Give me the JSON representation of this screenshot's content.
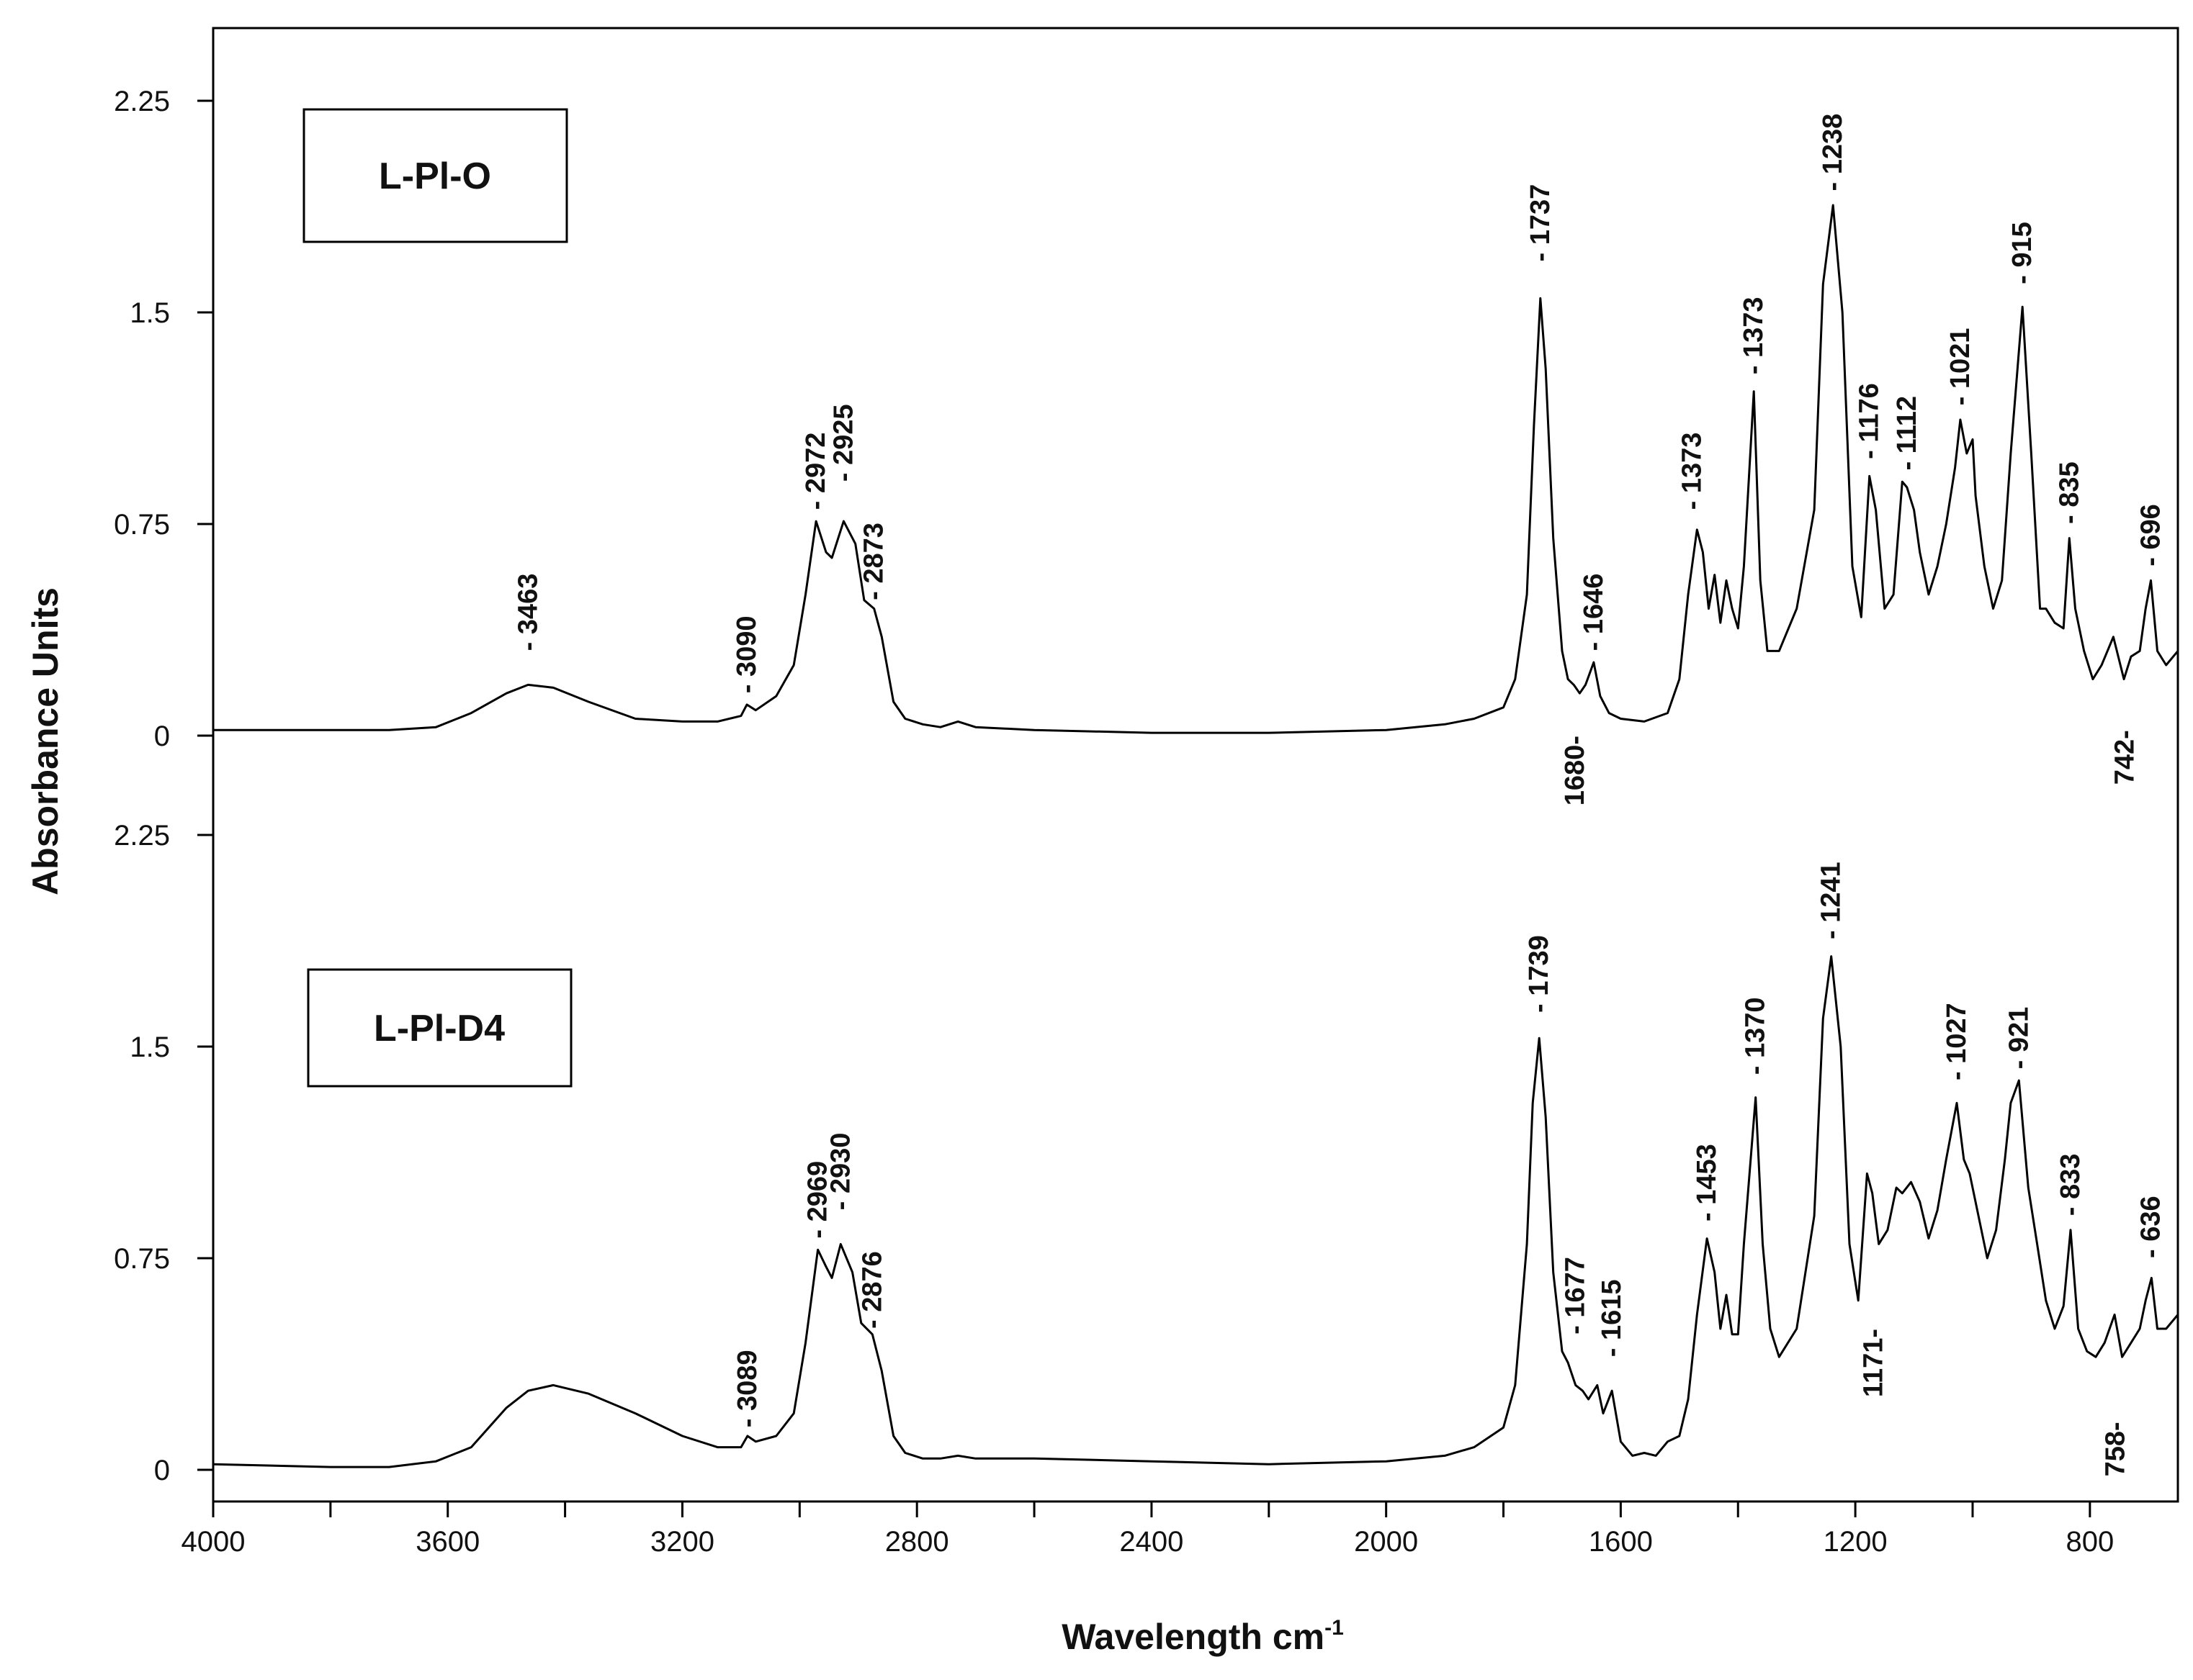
{
  "chart_data": {
    "type": "line",
    "xlabel": "Wavelength cm",
    "xlabel_sup": "-1",
    "ylabel": "Absorbance Units",
    "xlim": [
      4000,
      650
    ],
    "x_ticks": [
      4000,
      3600,
      3200,
      2800,
      2400,
      2000,
      1600,
      1200,
      800
    ],
    "panels": [
      {
        "name": "L-PI-O",
        "label": "L-Pl-O",
        "ylim": [
          -0.1,
          2.4
        ],
        "y_ticks": [
          "0",
          "0.75",
          "1.5",
          "2.25"
        ],
        "y_tick_values": [
          0,
          0.75,
          1.5,
          2.25
        ],
        "x": [
          4000,
          3800,
          3700,
          3620,
          3560,
          3500,
          3463,
          3420,
          3360,
          3280,
          3200,
          3140,
          3100,
          3090,
          3075,
          3040,
          3010,
          2990,
          2972,
          2955,
          2945,
          2925,
          2905,
          2890,
          2873,
          2860,
          2840,
          2820,
          2790,
          2760,
          2730,
          2700,
          2600,
          2400,
          2200,
          2000,
          1900,
          1850,
          1800,
          1780,
          1760,
          1748,
          1737,
          1728,
          1715,
          1700,
          1690,
          1680,
          1670,
          1660,
          1646,
          1635,
          1620,
          1600,
          1560,
          1520,
          1500,
          1485,
          1470,
          1460,
          1450,
          1440,
          1430,
          1420,
          1410,
          1400,
          1390,
          1373,
          1362,
          1350,
          1330,
          1300,
          1270,
          1255,
          1238,
          1222,
          1205,
          1190,
          1176,
          1165,
          1150,
          1135,
          1120,
          1112,
          1100,
          1090,
          1075,
          1060,
          1045,
          1030,
          1021,
          1010,
          1000,
          995,
          980,
          965,
          950,
          935,
          915,
          900,
          885,
          875,
          860,
          845,
          835,
          825,
          810,
          795,
          780,
          760,
          742,
          730,
          715,
          705,
          696,
          685,
          670,
          650
        ],
        "y": [
          0.02,
          0.02,
          0.02,
          0.03,
          0.08,
          0.15,
          0.18,
          0.17,
          0.12,
          0.06,
          0.05,
          0.05,
          0.07,
          0.11,
          0.09,
          0.14,
          0.25,
          0.5,
          0.76,
          0.65,
          0.63,
          0.76,
          0.68,
          0.48,
          0.45,
          0.35,
          0.12,
          0.06,
          0.04,
          0.03,
          0.05,
          0.03,
          0.02,
          0.01,
          0.01,
          0.02,
          0.04,
          0.06,
          0.1,
          0.2,
          0.5,
          1.1,
          1.55,
          1.3,
          0.7,
          0.3,
          0.2,
          0.18,
          0.15,
          0.18,
          0.26,
          0.14,
          0.08,
          0.06,
          0.05,
          0.08,
          0.2,
          0.5,
          0.73,
          0.65,
          0.45,
          0.57,
          0.4,
          0.55,
          0.45,
          0.38,
          0.6,
          1.22,
          0.55,
          0.3,
          0.3,
          0.45,
          0.8,
          1.6,
          1.88,
          1.5,
          0.6,
          0.42,
          0.92,
          0.8,
          0.45,
          0.5,
          0.9,
          0.88,
          0.8,
          0.65,
          0.5,
          0.6,
          0.75,
          0.95,
          1.12,
          1.0,
          1.05,
          0.85,
          0.6,
          0.45,
          0.55,
          1.0,
          1.52,
          1.0,
          0.45,
          0.45,
          0.4,
          0.38,
          0.7,
          0.45,
          0.3,
          0.2,
          0.25,
          0.35,
          0.2,
          0.28,
          0.3,
          0.45,
          0.55,
          0.3,
          0.25,
          0.3
        ],
        "annotations": [
          {
            "text": "- 3463",
            "x": 3463,
            "y": 0.3
          },
          {
            "text": "- 3090",
            "x": 3090,
            "y": 0.15
          },
          {
            "text": "- 2972",
            "x": 2972,
            "y": 0.8
          },
          {
            "text": "- 2925",
            "x": 2925,
            "y": 0.9
          },
          {
            "text": "- 2873",
            "x": 2873,
            "y": 0.48
          },
          {
            "text": "- 1737",
            "x": 1737,
            "y": 1.68
          },
          {
            "text": "- 1646",
            "x": 1646,
            "y": 0.3
          },
          {
            "text": "1680-",
            "x": 1678,
            "y": 0.0
          },
          {
            "text": "- 1373",
            "x": 1478,
            "y": 0.8
          },
          {
            "text": "- 1373",
            "x": 1373,
            "y": 1.28
          },
          {
            "text": "- 1238",
            "x": 1238,
            "y": 1.93
          },
          {
            "text": "- 1176",
            "x": 1176,
            "y": 0.98
          },
          {
            "text": "- 1112",
            "x": 1112,
            "y": 0.94
          },
          {
            "text": "- 1021",
            "x": 1021,
            "y": 1.17
          },
          {
            "text": "- 915",
            "x": 915,
            "y": 1.6
          },
          {
            "text": "- 835",
            "x": 835,
            "y": 0.75
          },
          {
            "text": "742-",
            "x": 740,
            "y": 0.02
          },
          {
            "text": "- 696",
            "x": 696,
            "y": 0.6
          }
        ]
      },
      {
        "name": "L-PI-D4",
        "label": "L-Pl-D4",
        "ylim": [
          -0.1,
          2.25
        ],
        "y_ticks": [
          "0",
          "0.75",
          "1.5",
          "2.25"
        ],
        "y_tick_values": [
          0,
          0.75,
          1.5,
          2.25
        ],
        "x": [
          4000,
          3800,
          3700,
          3620,
          3560,
          3500,
          3463,
          3420,
          3360,
          3280,
          3200,
          3140,
          3100,
          3089,
          3075,
          3040,
          3010,
          2990,
          2969,
          2955,
          2945,
          2930,
          2910,
          2895,
          2876,
          2860,
          2840,
          2820,
          2790,
          2760,
          2730,
          2700,
          2600,
          2400,
          2200,
          2000,
          1900,
          1850,
          1800,
          1780,
          1760,
          1750,
          1739,
          1728,
          1715,
          1700,
          1690,
          1677,
          1665,
          1655,
          1640,
          1630,
          1615,
          1600,
          1580,
          1560,
          1540,
          1520,
          1500,
          1485,
          1470,
          1453,
          1440,
          1430,
          1420,
          1410,
          1400,
          1390,
          1370,
          1358,
          1345,
          1330,
          1300,
          1270,
          1255,
          1241,
          1225,
          1210,
          1195,
          1180,
          1171,
          1160,
          1145,
          1130,
          1120,
          1105,
          1090,
          1075,
          1060,
          1045,
          1027,
          1015,
          1005,
          990,
          975,
          960,
          945,
          935,
          921,
          905,
          890,
          875,
          860,
          845,
          833,
          820,
          805,
          790,
          775,
          758,
          745,
          730,
          715,
          705,
          695,
          685,
          670,
          650
        ],
        "y": [
          0.02,
          0.01,
          0.01,
          0.03,
          0.08,
          0.22,
          0.28,
          0.3,
          0.27,
          0.2,
          0.12,
          0.08,
          0.08,
          0.12,
          0.1,
          0.12,
          0.2,
          0.45,
          0.78,
          0.72,
          0.68,
          0.8,
          0.7,
          0.52,
          0.48,
          0.35,
          0.12,
          0.06,
          0.04,
          0.04,
          0.05,
          0.04,
          0.04,
          0.03,
          0.02,
          0.03,
          0.05,
          0.08,
          0.15,
          0.3,
          0.8,
          1.3,
          1.53,
          1.25,
          0.7,
          0.42,
          0.38,
          0.3,
          0.28,
          0.25,
          0.3,
          0.2,
          0.28,
          0.1,
          0.05,
          0.06,
          0.05,
          0.1,
          0.12,
          0.25,
          0.55,
          0.82,
          0.7,
          0.5,
          0.62,
          0.48,
          0.48,
          0.8,
          1.32,
          0.8,
          0.5,
          0.4,
          0.5,
          0.9,
          1.6,
          1.82,
          1.5,
          0.8,
          0.6,
          1.05,
          0.98,
          0.8,
          0.85,
          1.0,
          0.98,
          1.02,
          0.95,
          0.82,
          0.92,
          1.1,
          1.3,
          1.1,
          1.05,
          0.9,
          0.75,
          0.85,
          1.1,
          1.3,
          1.38,
          1.0,
          0.8,
          0.6,
          0.5,
          0.58,
          0.85,
          0.5,
          0.42,
          0.4,
          0.45,
          0.55,
          0.4,
          0.45,
          0.5,
          0.6,
          0.68,
          0.5,
          0.5,
          0.55
        ],
        "annotations": [
          {
            "text": "- 3089",
            "x": 3089,
            "y": 0.15
          },
          {
            "text": "- 2969",
            "x": 2969,
            "y": 0.82
          },
          {
            "text": "- 2930",
            "x": 2930,
            "y": 0.92
          },
          {
            "text": "- 2876",
            "x": 2876,
            "y": 0.5
          },
          {
            "text": "- 1739",
            "x": 1739,
            "y": 1.62
          },
          {
            "text": "- 1677",
            "x": 1677,
            "y": 0.48
          },
          {
            "text": "- 1615",
            "x": 1615,
            "y": 0.4
          },
          {
            "text": "- 1453",
            "x": 1453,
            "y": 0.88
          },
          {
            "text": "- 1370",
            "x": 1370,
            "y": 1.4
          },
          {
            "text": "- 1241",
            "x": 1241,
            "y": 1.88
          },
          {
            "text": "1171-",
            "x": 1169,
            "y": 0.5
          },
          {
            "text": "- 1027",
            "x": 1027,
            "y": 1.38
          },
          {
            "text": "- 921",
            "x": 921,
            "y": 1.42
          },
          {
            "text": "- 833",
            "x": 833,
            "y": 0.9
          },
          {
            "text": "758-",
            "x": 756,
            "y": 0.17
          },
          {
            "text": "- 636",
            "x": 696,
            "y": 0.75
          }
        ]
      }
    ]
  }
}
